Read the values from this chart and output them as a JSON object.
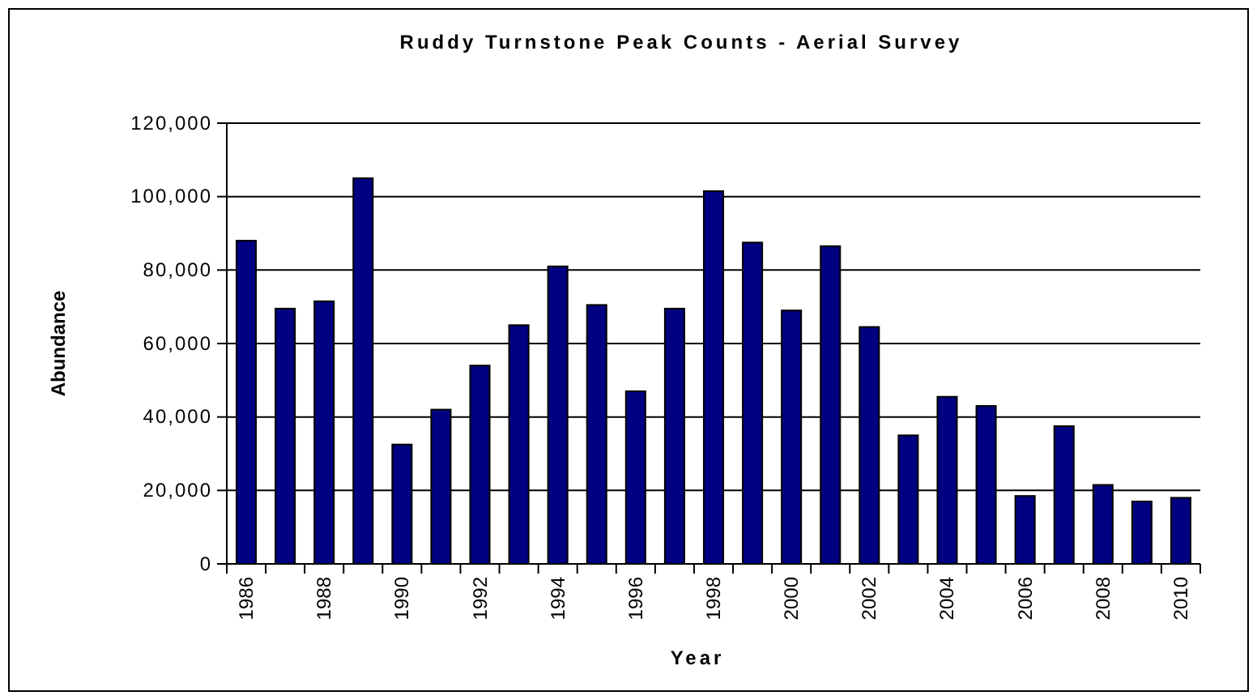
{
  "chart_data": {
    "type": "bar",
    "title": "Ruddy Turnstone Peak Counts - Aerial Survey",
    "xlabel": "Year",
    "ylabel": "Abundance",
    "categories": [
      "1986",
      null,
      "1988",
      null,
      "1990",
      null,
      "1992",
      null,
      "1994",
      null,
      "1996",
      null,
      "1998",
      null,
      "2000",
      null,
      "2002",
      null,
      "2004",
      null,
      "2006",
      null,
      "2008",
      null,
      "2010"
    ],
    "values": [
      88000,
      69500,
      71500,
      105000,
      32500,
      42000,
      54000,
      65000,
      81000,
      70500,
      47000,
      69500,
      101500,
      87500,
      69000,
      86500,
      64500,
      35000,
      45500,
      43000,
      18500,
      37500,
      21500,
      17000,
      18000
    ],
    "color": "#000080",
    "ylim": [
      0,
      120000
    ],
    "yticks": [
      {
        "value": 0,
        "label": "0"
      },
      {
        "value": 20000,
        "label": "20,000"
      },
      {
        "value": 40000,
        "label": "40,000"
      },
      {
        "value": 60000,
        "label": "60,000"
      },
      {
        "value": 80000,
        "label": "80,000"
      },
      {
        "value": 100000,
        "label": "100,000"
      },
      {
        "value": 120000,
        "label": "120,000"
      }
    ],
    "grid": "y"
  }
}
